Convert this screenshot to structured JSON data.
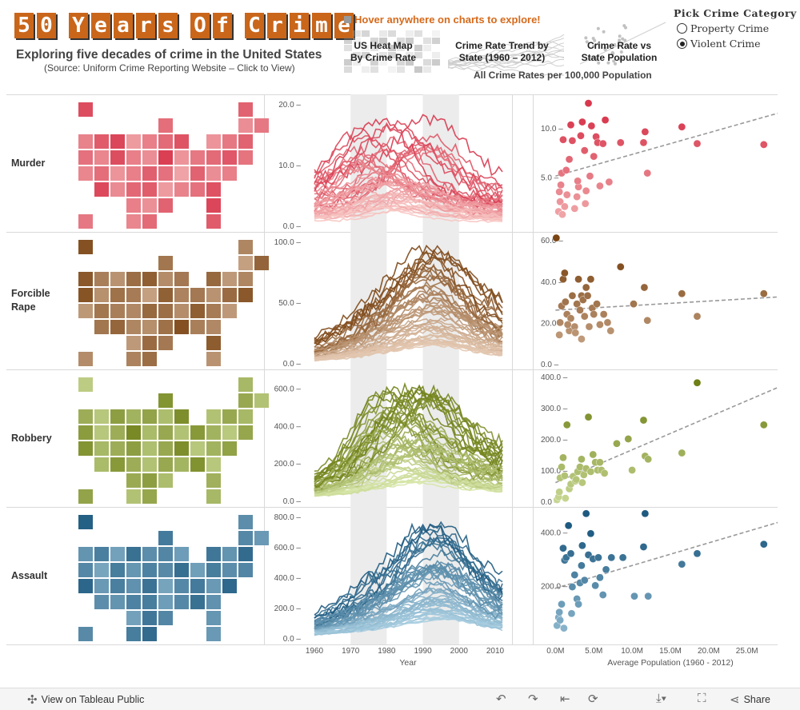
{
  "header": {
    "title": "50 Years Of Crime",
    "subtitle": "Exploring five decades of crime in the United States",
    "source": "(Source: Uniform Crime Reporting Website – Click to View)",
    "hover_hint": "Hover anywhere on charts to explore!",
    "nav": [
      {
        "line1": "US Heat Map",
        "line2": "By Crime Rate"
      },
      {
        "line1": "Crime Rate Trend by",
        "line2": "State (1960 – 2012)"
      },
      {
        "line1": "Crime Rate vs",
        "line2": "State Population"
      }
    ],
    "all_rates": "All Crime Rates per 100,000 Population"
  },
  "picker": {
    "title": "Pick Crime Category",
    "options": [
      "Property Crime",
      "Violent Crime"
    ],
    "selected": "Violent Crime"
  },
  "toolbar": {
    "view_label": "View on Tableau Public",
    "share_label": "Share",
    "icons": [
      "undo-icon",
      "redo-icon",
      "revert-icon",
      "download-icon",
      "fullscreen-icon",
      "share-icon"
    ]
  },
  "rows": [
    {
      "label": "Murder",
      "color_light": "#f7c6c3",
      "color_dark": "#d8384e"
    },
    {
      "label": "Forcible Rape",
      "color_light": "#e3c7b0",
      "color_dark": "#7a4413"
    },
    {
      "label": "Robbery",
      "color_light": "#d6e6a7",
      "color_dark": "#6e7f16"
    },
    {
      "label": "Assault",
      "color_light": "#a7cde0",
      "color_dark": "#1e5a80"
    }
  ],
  "chart_data": [
    {
      "type": "heatmap",
      "title": "US Heat Map By Crime Rate",
      "panels": [
        {
          "crime": "Murder",
          "state_intensity": [
            0.85,
            0.7,
            0.4,
            0.55,
            0.62,
            0.48,
            0.75,
            0.9,
            0.3,
            0.5,
            0.65,
            0.8,
            0.35,
            0.55,
            0.7,
            0.6,
            0.45,
            0.85,
            0.5,
            0.4,
            0.95,
            0.35,
            0.55,
            0.65,
            0.78,
            0.58,
            0.45,
            0.62,
            0.35,
            0.5,
            0.72,
            0.6,
            0.25,
            0.7,
            0.4,
            0.5,
            0.88,
            0.42,
            0.66,
            0.74,
            0.3,
            0.47,
            0.6,
            0.82,
            0.5,
            0.38,
            0.7,
            0.9,
            0.55,
            0.45,
            0.65,
            0.75
          ]
        },
        {
          "crime": "Forcible Rape",
          "state_intensity": [
            0.9,
            0.5,
            0.3,
            0.75,
            0.62,
            0.85,
            0.55,
            0.4,
            0.68,
            0.8,
            0.45,
            0.6,
            0.72,
            0.35,
            0.5,
            0.88,
            0.42,
            0.65,
            0.58,
            0.3,
            0.78,
            0.52,
            0.6,
            0.4,
            0.7,
            0.85,
            0.36,
            0.62,
            0.55,
            0.48,
            0.72,
            0.67,
            0.44,
            0.8,
            0.58,
            0.35,
            0.62,
            0.74,
            0.5,
            0.43,
            0.66,
            0.9,
            0.55,
            0.48,
            0.35,
            0.7,
            0.6,
            0.82,
            0.45,
            0.52,
            0.68,
            0.4
          ]
        },
        {
          "crime": "Robbery",
          "state_intensity": [
            0.25,
            0.45,
            0.6,
            0.35,
            0.8,
            0.55,
            0.3,
            0.7,
            0.5,
            0.65,
            0.4,
            0.85,
            0.35,
            0.6,
            0.45,
            0.72,
            0.3,
            0.55,
            0.9,
            0.42,
            0.6,
            0.35,
            0.75,
            0.5,
            0.28,
            0.62,
            0.8,
            0.45,
            0.55,
            0.7,
            0.38,
            0.6,
            0.85,
            0.3,
            0.5,
            0.66,
            0.42,
            0.75,
            0.55,
            0.35,
            0.6,
            0.48,
            0.82,
            0.3,
            0.58,
            0.7,
            0.4,
            0.52,
            0.65,
            0.35,
            0.62,
            0.45
          ]
        },
        {
          "crime": "Assault",
          "state_intensity": [
            0.95,
            0.55,
            0.6,
            0.45,
            0.72,
            0.5,
            0.68,
            0.38,
            0.8,
            0.55,
            0.62,
            0.42,
            0.75,
            0.5,
            0.85,
            0.6,
            0.35,
            0.7,
            0.48,
            0.65,
            0.58,
            0.82,
            0.4,
            0.7,
            0.55,
            0.62,
            0.9,
            0.45,
            0.68,
            0.52,
            0.78,
            0.36,
            0.6,
            0.72,
            0.45,
            0.88,
            0.55,
            0.5,
            0.65,
            0.7,
            0.42,
            0.6,
            0.8,
            0.52,
            0.38,
            0.75,
            0.62,
            0.48,
            0.58,
            0.7,
            0.85,
            0.45
          ]
        }
      ]
    },
    {
      "type": "line",
      "title": "Crime Rate Trend by State (1960 – 2012)",
      "xlabel": "Year",
      "x_ticks": [
        1960,
        1970,
        1980,
        1990,
        2000,
        2010
      ],
      "x_range": [
        1960,
        2012
      ],
      "shaded_periods": [
        [
          1970,
          1980
        ],
        [
          1990,
          2000
        ]
      ],
      "panels": [
        {
          "crime": "Murder",
          "ylim": [
            0,
            20
          ],
          "y_ticks": [
            "0.0",
            "10.0",
            "20.0"
          ],
          "state_count": 51,
          "peak_range": [
            2,
            19
          ],
          "peak_years": [
            1972,
            1980,
            1991
          ]
        },
        {
          "crime": "Forcible Rape",
          "ylim": [
            0,
            100
          ],
          "y_ticks": [
            "0.0",
            "50.0",
            "100.0"
          ],
          "state_count": 51,
          "peak_range": [
            5,
            98
          ],
          "peak_years": [
            1992
          ]
        },
        {
          "crime": "Robbery",
          "ylim": [
            0,
            650
          ],
          "y_ticks": [
            "0.0",
            "200.0",
            "400.0",
            "600.0"
          ],
          "state_count": 51,
          "peak_range": [
            5,
            640
          ],
          "peak_years": [
            1981,
            1991
          ]
        },
        {
          "crime": "Assault",
          "ylim": [
            0,
            800
          ],
          "y_ticks": [
            "0.0",
            "200.0",
            "400.0",
            "600.0",
            "800.0"
          ],
          "state_count": 51,
          "peak_range": [
            10,
            780
          ],
          "peak_years": [
            1993
          ]
        }
      ]
    },
    {
      "type": "scatter",
      "title": "Crime Rate vs State Population",
      "xlabel": "Average Population (1960 - 2012)",
      "x_ticks": [
        "0.0M",
        "5.0M",
        "10.0M",
        "15.0M",
        "20.0M",
        "25.0M"
      ],
      "xlim": [
        -1.5,
        29
      ],
      "panels": [
        {
          "crime": "Murder",
          "ylim": [
            0,
            13
          ],
          "y_ticks": [
            "5.0",
            "10.0"
          ],
          "trend": [
            5.1,
            0.22
          ],
          "points": [
            [
              0.4,
              1.5
            ],
            [
              0.6,
              2.5
            ],
            [
              0.5,
              3.5
            ],
            [
              0.7,
              4.2
            ],
            [
              0.8,
              5.4
            ],
            [
              1.0,
              8.8
            ],
            [
              1.2,
              2.0
            ],
            [
              1.5,
              3.2
            ],
            [
              1.8,
              6.8
            ],
            [
              2.0,
              10.3
            ],
            [
              2.2,
              8.7
            ],
            [
              2.5,
              1.8
            ],
            [
              2.8,
              3.0
            ],
            [
              3.0,
              4.0
            ],
            [
              3.3,
              9.2
            ],
            [
              3.5,
              10.6
            ],
            [
              3.8,
              7.7
            ],
            [
              4.0,
              3.6
            ],
            [
              4.3,
              12.5
            ],
            [
              4.5,
              5.1
            ],
            [
              4.7,
              10.2
            ],
            [
              5.0,
              7.1
            ],
            [
              5.3,
              9.1
            ],
            [
              5.5,
              8.5
            ],
            [
              5.8,
              4.1
            ],
            [
              6.2,
              8.4
            ],
            [
              6.5,
              10.8
            ],
            [
              7.0,
              4.5
            ],
            [
              8.5,
              8.5
            ],
            [
              11.5,
              8.5
            ],
            [
              11.7,
              9.6
            ],
            [
              12.0,
              5.4
            ],
            [
              16.5,
              10.1
            ],
            [
              18.5,
              8.4
            ],
            [
              27.2,
              8.3
            ],
            [
              3.9,
              2.3
            ],
            [
              2.9,
              4.6
            ],
            [
              1.4,
              5.7
            ],
            [
              0.9,
              1.2
            ]
          ]
        },
        {
          "crime": "Forcible Rape",
          "ylim": [
            0,
            62
          ],
          "y_ticks": [
            "0.0",
            "20.0",
            "40.0",
            "60.0"
          ],
          "trend": [
            26,
            0.22
          ],
          "points": [
            [
              0.1,
              61
            ],
            [
              0.5,
              14
            ],
            [
              0.6,
              20
            ],
            [
              0.8,
              28
            ],
            [
              1.0,
              41
            ],
            [
              1.2,
              44
            ],
            [
              1.3,
              30
            ],
            [
              1.5,
              24
            ],
            [
              1.8,
              16
            ],
            [
              2.0,
              22
            ],
            [
              2.2,
              33
            ],
            [
              2.5,
              18
            ],
            [
              2.8,
              29
            ],
            [
              3.0,
              41
            ],
            [
              3.2,
              26
            ],
            [
              3.4,
              33
            ],
            [
              3.6,
              31
            ],
            [
              3.8,
              23
            ],
            [
              4.0,
              37
            ],
            [
              4.2,
              33
            ],
            [
              4.4,
              18
            ],
            [
              4.6,
              41
            ],
            [
              4.8,
              27
            ],
            [
              5.0,
              24
            ],
            [
              5.4,
              29
            ],
            [
              5.8,
              19
            ],
            [
              6.3,
              24
            ],
            [
              6.8,
              20
            ],
            [
              7.2,
              16
            ],
            [
              8.5,
              47
            ],
            [
              10.2,
              29
            ],
            [
              11.6,
              37
            ],
            [
              12.0,
              21
            ],
            [
              16.5,
              34
            ],
            [
              18.5,
              23
            ],
            [
              27.2,
              34
            ],
            [
              2.6,
              15
            ],
            [
              1.6,
              19
            ],
            [
              3.4,
              12
            ]
          ]
        },
        {
          "crime": "Robbery",
          "ylim": [
            0,
            410
          ],
          "y_ticks": [
            "0.0",
            "100.0",
            "200.0",
            "300.0",
            "400.0"
          ],
          "trend": [
            60,
            10.5
          ],
          "points": [
            [
              0.2,
              5
            ],
            [
              0.4,
              14
            ],
            [
              0.5,
              30
            ],
            [
              0.6,
              75
            ],
            [
              0.8,
              110
            ],
            [
              1.0,
              140
            ],
            [
              1.2,
              82
            ],
            [
              1.5,
              245
            ],
            [
              1.8,
              40
            ],
            [
              2.0,
              55
            ],
            [
              2.3,
              80
            ],
            [
              2.6,
              65
            ],
            [
              2.9,
              95
            ],
            [
              3.2,
              110
            ],
            [
              3.4,
              135
            ],
            [
              3.7,
              85
            ],
            [
              4.0,
              105
            ],
            [
              4.3,
              270
            ],
            [
              4.6,
              95
            ],
            [
              4.9,
              150
            ],
            [
              5.2,
              125
            ],
            [
              5.5,
              100
            ],
            [
              6.0,
              100
            ],
            [
              6.4,
              90
            ],
            [
              8.0,
              185
            ],
            [
              9.5,
              200
            ],
            [
              10.0,
              100
            ],
            [
              11.5,
              260
            ],
            [
              11.7,
              145
            ],
            [
              12.1,
              135
            ],
            [
              16.5,
              155
            ],
            [
              18.5,
              380
            ],
            [
              27.2,
              245
            ],
            [
              3.5,
              60
            ],
            [
              2.7,
              70
            ],
            [
              1.3,
              10
            ],
            [
              5.8,
              125
            ]
          ]
        },
        {
          "crime": "Assault",
          "ylim": [
            0,
            480
          ],
          "y_ticks": [
            "200.0",
            "400.0"
          ],
          "trend": [
            190,
            8.5
          ],
          "points": [
            [
              0.2,
              50
            ],
            [
              0.4,
              80
            ],
            [
              0.5,
              100
            ],
            [
              0.6,
              70
            ],
            [
              0.8,
              130
            ],
            [
              1.0,
              340
            ],
            [
              1.2,
              295
            ],
            [
              1.4,
              305
            ],
            [
              1.7,
              425
            ],
            [
              2.0,
              320
            ],
            [
              2.2,
              195
            ],
            [
              2.5,
              240
            ],
            [
              2.8,
              150
            ],
            [
              3.0,
              130
            ],
            [
              3.2,
              210
            ],
            [
              3.5,
              350
            ],
            [
              3.8,
              220
            ],
            [
              4.0,
              470
            ],
            [
              4.3,
              315
            ],
            [
              4.6,
              395
            ],
            [
              4.9,
              300
            ],
            [
              5.2,
              200
            ],
            [
              5.6,
              305
            ],
            [
              6.2,
              165
            ],
            [
              6.6,
              260
            ],
            [
              7.3,
              305
            ],
            [
              8.8,
              305
            ],
            [
              10.3,
              160
            ],
            [
              11.5,
              345
            ],
            [
              11.7,
              470
            ],
            [
              12.1,
              160
            ],
            [
              16.5,
              280
            ],
            [
              18.5,
              320
            ],
            [
              27.2,
              355
            ],
            [
              3.4,
              275
            ],
            [
              2.1,
              95
            ],
            [
              1.1,
              40
            ],
            [
              5.8,
              230
            ]
          ]
        }
      ]
    }
  ]
}
